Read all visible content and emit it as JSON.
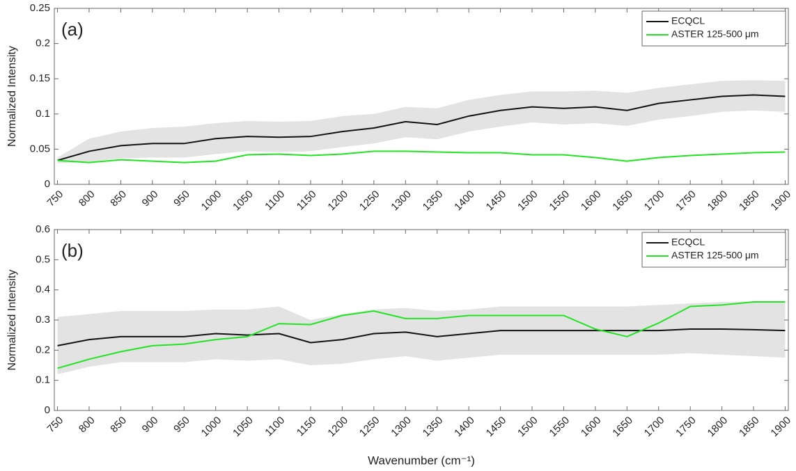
{
  "chart_data": [
    {
      "type": "line",
      "panel_label": "(a)",
      "ylabel": "Normalized Intensity",
      "x": [
        750,
        800,
        850,
        900,
        950,
        1000,
        1050,
        1100,
        1150,
        1200,
        1250,
        1300,
        1350,
        1400,
        1450,
        1500,
        1550,
        1600,
        1650,
        1700,
        1750,
        1800,
        1850,
        1900
      ],
      "series": [
        {
          "name": "ECQCL",
          "color": "#111111",
          "values": [
            0.034,
            0.047,
            0.055,
            0.058,
            0.058,
            0.065,
            0.068,
            0.067,
            0.068,
            0.075,
            0.08,
            0.089,
            0.085,
            0.097,
            0.105,
            0.11,
            0.108,
            0.11,
            0.105,
            0.115,
            0.12,
            0.125,
            0.127,
            0.125
          ]
        },
        {
          "name": "ASTER 125-500 μm",
          "color": "#22e322",
          "values": [
            0.034,
            0.031,
            0.035,
            0.033,
            0.031,
            0.033,
            0.042,
            0.043,
            0.041,
            0.043,
            0.047,
            0.047,
            0.046,
            0.045,
            0.045,
            0.042,
            0.042,
            0.038,
            0.033,
            0.038,
            0.041,
            0.043,
            0.045,
            0.046
          ]
        }
      ],
      "band": {
        "color": "#e3e3e3",
        "upper": [
          0.038,
          0.065,
          0.075,
          0.08,
          0.082,
          0.087,
          0.09,
          0.089,
          0.09,
          0.097,
          0.1,
          0.11,
          0.108,
          0.12,
          0.127,
          0.132,
          0.132,
          0.133,
          0.13,
          0.137,
          0.142,
          0.147,
          0.148,
          0.147
        ],
        "lower": [
          0.03,
          0.032,
          0.037,
          0.038,
          0.038,
          0.043,
          0.047,
          0.046,
          0.047,
          0.053,
          0.058,
          0.067,
          0.064,
          0.075,
          0.082,
          0.088,
          0.085,
          0.087,
          0.083,
          0.092,
          0.097,
          0.103,
          0.105,
          0.103
        ]
      },
      "xlim": [
        745,
        1905
      ],
      "xticks": [
        750,
        800,
        850,
        900,
        950,
        1000,
        1050,
        1100,
        1150,
        1200,
        1250,
        1300,
        1350,
        1400,
        1450,
        1500,
        1550,
        1600,
        1650,
        1700,
        1750,
        1800,
        1850,
        1900
      ],
      "ylim": [
        0,
        0.25
      ],
      "yticks": [
        0,
        0.05,
        0.1,
        0.15,
        0.2,
        0.25
      ],
      "legend": "upper right"
    },
    {
      "type": "line",
      "panel_label": "(b)",
      "ylabel": "Normalized Intensity",
      "xlabel": "Wavenumber (cm⁻¹)",
      "x": [
        750,
        800,
        850,
        900,
        950,
        1000,
        1050,
        1100,
        1150,
        1200,
        1250,
        1300,
        1350,
        1400,
        1450,
        1500,
        1550,
        1600,
        1650,
        1700,
        1750,
        1800,
        1850,
        1900
      ],
      "series": [
        {
          "name": "ECQCL",
          "color": "#111111",
          "values": [
            0.215,
            0.235,
            0.245,
            0.245,
            0.245,
            0.255,
            0.25,
            0.255,
            0.225,
            0.235,
            0.255,
            0.26,
            0.245,
            0.255,
            0.265,
            0.265,
            0.265,
            0.265,
            0.265,
            0.265,
            0.27,
            0.27,
            0.268,
            0.265
          ]
        },
        {
          "name": "ASTER 125-500 μm",
          "color": "#22e322",
          "values": [
            0.14,
            0.17,
            0.195,
            0.215,
            0.22,
            0.235,
            0.245,
            0.288,
            0.285,
            0.315,
            0.33,
            0.305,
            0.305,
            0.315,
            0.315,
            0.315,
            0.315,
            0.27,
            0.245,
            0.29,
            0.345,
            0.35,
            0.36,
            0.36
          ]
        }
      ],
      "band": {
        "color": "#e3e3e3",
        "upper": [
          0.31,
          0.32,
          0.33,
          0.33,
          0.33,
          0.335,
          0.335,
          0.345,
          0.3,
          0.32,
          0.335,
          0.34,
          0.33,
          0.335,
          0.345,
          0.345,
          0.345,
          0.345,
          0.345,
          0.35,
          0.355,
          0.36,
          0.36,
          0.36
        ],
        "lower": [
          0.12,
          0.145,
          0.16,
          0.16,
          0.16,
          0.17,
          0.165,
          0.17,
          0.15,
          0.155,
          0.17,
          0.18,
          0.165,
          0.175,
          0.185,
          0.185,
          0.185,
          0.185,
          0.185,
          0.185,
          0.19,
          0.185,
          0.18,
          0.175
        ]
      },
      "xlim": [
        745,
        1905
      ],
      "xticks": [
        750,
        800,
        850,
        900,
        950,
        1000,
        1050,
        1100,
        1150,
        1200,
        1250,
        1300,
        1350,
        1400,
        1450,
        1500,
        1550,
        1600,
        1650,
        1700,
        1750,
        1800,
        1850,
        1900
      ],
      "ylim": [
        0,
        0.6
      ],
      "yticks": [
        0,
        0.1,
        0.2,
        0.3,
        0.4,
        0.5,
        0.6
      ],
      "legend": "upper right"
    }
  ]
}
